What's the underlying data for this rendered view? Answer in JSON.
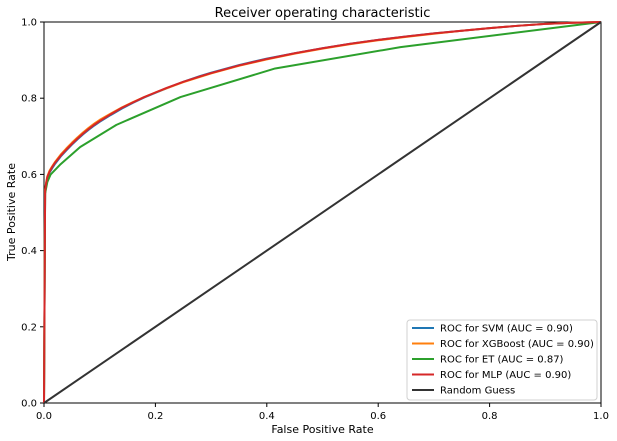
{
  "chart_data": {
    "type": "line",
    "title": "Receiver operating characteristic",
    "xlabel": "False Positive Rate",
    "ylabel": "True Positive Rate",
    "xlim": [
      0,
      1
    ],
    "ylim": [
      0,
      1
    ],
    "x_ticks": [
      0,
      0.2,
      0.4,
      0.6,
      0.8,
      1
    ],
    "y_ticks": [
      0,
      0.2,
      0.4,
      0.6,
      0.8,
      1
    ],
    "x_tick_labels": [
      "0.0",
      "0.2",
      "0.4",
      "0.6",
      "0.8",
      "1.0"
    ],
    "y_tick_labels": [
      "0.0",
      "0.2",
      "0.4",
      "0.6",
      "0.8",
      "1.0"
    ],
    "grid": false,
    "legend_position": "lower-right",
    "series": [
      {
        "name": "ROC for SVM (AUC = 0.90)",
        "color": "#1f77b4",
        "x": [
          0,
          0.002,
          0.004,
          0.006,
          0.01,
          0.015,
          0.02,
          0.03,
          0.04,
          0.05,
          0.06,
          0.07,
          0.08,
          0.09,
          0.1,
          0.12,
          0.14,
          0.16,
          0.18,
          0.2,
          0.22,
          0.25,
          0.28,
          0.3,
          0.35,
          0.4,
          0.45,
          0.5,
          0.55,
          0.6,
          0.65,
          0.7,
          0.75,
          0.8,
          0.85,
          0.9,
          0.95,
          1
        ],
        "y": [
          0,
          0.55,
          0.575,
          0.59,
          0.605,
          0.617,
          0.628,
          0.647,
          0.663,
          0.678,
          0.692,
          0.705,
          0.717,
          0.728,
          0.738,
          0.756,
          0.773,
          0.788,
          0.802,
          0.814,
          0.826,
          0.843,
          0.858,
          0.867,
          0.887,
          0.904,
          0.918,
          0.931,
          0.943,
          0.953,
          0.962,
          0.97,
          0.977,
          0.984,
          0.99,
          0.995,
          0.998,
          1
        ]
      },
      {
        "name": "ROC for XGBoost (AUC = 0.90)",
        "color": "#ff7f0e",
        "x": [
          0,
          0.002,
          0.004,
          0.006,
          0.01,
          0.015,
          0.02,
          0.03,
          0.04,
          0.05,
          0.06,
          0.07,
          0.08,
          0.09,
          0.1,
          0.12,
          0.14,
          0.16,
          0.18,
          0.2,
          0.22,
          0.25,
          0.28,
          0.3,
          0.35,
          0.4,
          0.45,
          0.5,
          0.55,
          0.6,
          0.65,
          0.7,
          0.75,
          0.8,
          0.85,
          0.9,
          0.95,
          1
        ],
        "y": [
          0,
          0.56,
          0.58,
          0.595,
          0.61,
          0.622,
          0.633,
          0.652,
          0.668,
          0.683,
          0.697,
          0.71,
          0.722,
          0.733,
          0.743,
          0.76,
          0.776,
          0.79,
          0.803,
          0.815,
          0.826,
          0.842,
          0.856,
          0.865,
          0.885,
          0.902,
          0.917,
          0.93,
          0.942,
          0.952,
          0.961,
          0.969,
          0.977,
          0.984,
          0.99,
          0.995,
          0.998,
          1
        ]
      },
      {
        "name": "ROC for ET (AUC = 0.87)",
        "color": "#2ca02c",
        "x": [
          0,
          0.002,
          0.006,
          0.012,
          0.03,
          0.065,
          0.13,
          0.245,
          0.415,
          0.64,
          1
        ],
        "y": [
          0,
          0.55,
          0.58,
          0.6,
          0.627,
          0.672,
          0.73,
          0.803,
          0.878,
          0.934,
          1
        ]
      },
      {
        "name": "ROC for MLP (AUC = 0.90)",
        "color": "#d62728",
        "x": [
          0,
          0.002,
          0.004,
          0.006,
          0.01,
          0.015,
          0.02,
          0.03,
          0.04,
          0.05,
          0.06,
          0.07,
          0.08,
          0.09,
          0.1,
          0.12,
          0.14,
          0.16,
          0.18,
          0.2,
          0.22,
          0.25,
          0.28,
          0.3,
          0.35,
          0.4,
          0.45,
          0.5,
          0.55,
          0.6,
          0.65,
          0.7,
          0.75,
          0.8,
          0.85,
          0.9,
          0.95,
          1
        ],
        "y": [
          0,
          0.555,
          0.578,
          0.593,
          0.607,
          0.62,
          0.631,
          0.649,
          0.665,
          0.68,
          0.694,
          0.707,
          0.719,
          0.73,
          0.74,
          0.758,
          0.775,
          0.789,
          0.803,
          0.815,
          0.827,
          0.843,
          0.857,
          0.866,
          0.886,
          0.903,
          0.918,
          0.931,
          0.943,
          0.953,
          0.962,
          0.97,
          0.977,
          0.984,
          0.99,
          0.995,
          0.998,
          1
        ]
      },
      {
        "name": "Random Guess",
        "color": "#333333",
        "x": [
          0,
          1
        ],
        "y": [
          0,
          1
        ]
      }
    ]
  }
}
